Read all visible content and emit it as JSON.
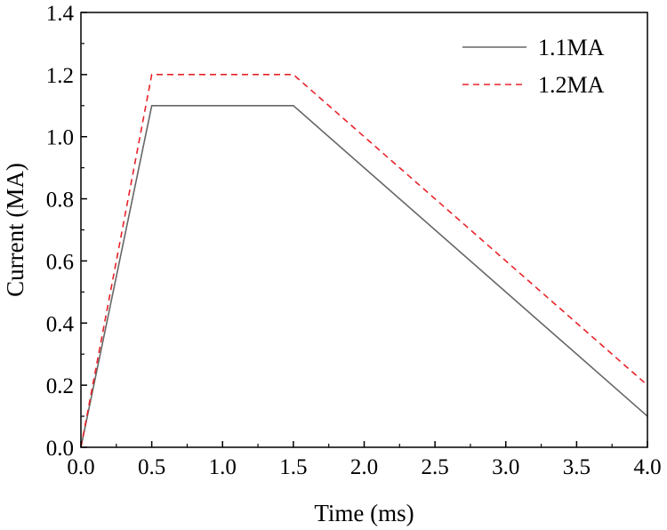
{
  "chart_data": {
    "type": "line",
    "title": "",
    "xlabel": "Time (ms)",
    "ylabel": "Current (MA)",
    "xlim": [
      0,
      4.0
    ],
    "ylim": [
      0,
      1.4
    ],
    "x_ticks": [
      "0.0",
      "0.5",
      "1.0",
      "1.5",
      "2.0",
      "2.5",
      "3.0",
      "3.5",
      "4.0"
    ],
    "y_ticks": [
      "0.0",
      "0.2",
      "0.4",
      "0.6",
      "0.8",
      "1.0",
      "1.2",
      "1.4"
    ],
    "grid": false,
    "legend_position": "top-right",
    "series": [
      {
        "name": "1.1MA",
        "color": "#666666",
        "style": "solid",
        "x": [
          0,
          0.5,
          1.5,
          4.0
        ],
        "y": [
          0,
          1.1,
          1.1,
          0.1
        ]
      },
      {
        "name": "1.2MA",
        "color": "#e8232a",
        "style": "dashed",
        "x": [
          0,
          0.5,
          1.5,
          4.0
        ],
        "y": [
          0,
          1.2,
          1.2,
          0.2
        ]
      }
    ]
  }
}
